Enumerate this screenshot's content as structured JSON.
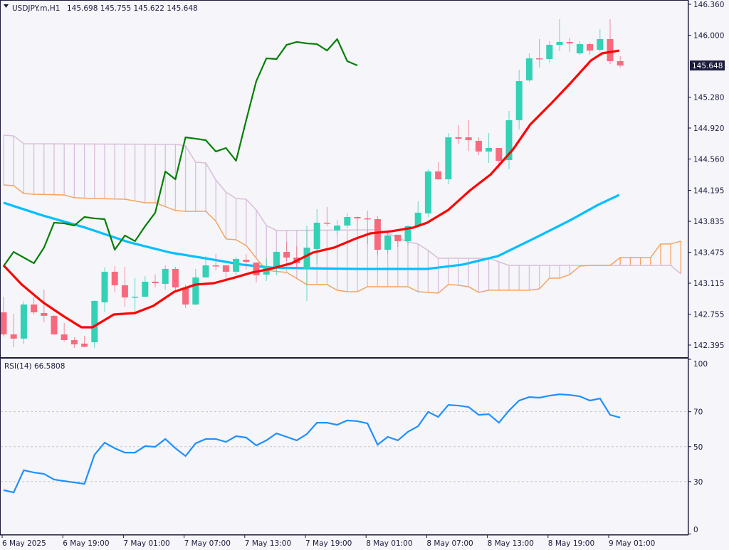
{
  "header": {
    "symbol": "USDJPY.m,H1",
    "ohlc": "145.698 145.755 145.622 145.648"
  },
  "price_axis": {
    "ticks": [
      "146.360",
      "146.000",
      "145.280",
      "144.920",
      "144.560",
      "144.195",
      "143.835",
      "143.475",
      "143.115",
      "142.755",
      "142.395"
    ],
    "current_price_label": "145.648"
  },
  "rsi_panel": {
    "label": "RSI(14) 66.5808",
    "ticks": [
      "100",
      "70",
      "50",
      "30",
      "0"
    ],
    "levels": [
      70,
      50,
      30
    ]
  },
  "time_axis": {
    "labels": [
      "6 May 2025",
      "6 May 19:00",
      "7 May 01:00",
      "7 May 07:00",
      "7 May 13:00",
      "7 May 19:00",
      "8 May 01:00",
      "8 May 07:00",
      "8 May 13:00",
      "8 May 19:00",
      "9 May 01:00"
    ],
    "bars_per_label": 6
  },
  "colors": {
    "background": "#f5f5fa",
    "bull": "#33d1b6",
    "bear": "#f76a7d",
    "ma_fast": "#ff0000",
    "ma_slow": "#00bfff",
    "chikou": "#008000",
    "span_a": "#d8bfd8",
    "span_b": "#f4a460",
    "rsi": "#1e90ff",
    "axis": "#1c1c3c",
    "price_tag": "#1c1c3c"
  },
  "chart_data": {
    "type": "candlestick",
    "title": "USDJPY.m,H1",
    "ylim": [
      142.254,
      146.41
    ],
    "ohlc": [
      [
        142.776,
        142.958,
        142.494,
        142.519
      ],
      [
        142.519,
        142.759,
        142.37,
        142.47
      ],
      [
        142.47,
        142.9,
        142.412,
        142.867
      ],
      [
        142.867,
        142.95,
        142.751,
        142.776
      ],
      [
        142.768,
        143.041,
        142.66,
        142.735
      ],
      [
        142.735,
        142.74,
        142.515,
        142.519
      ],
      [
        142.519,
        142.652,
        142.437,
        142.453
      ],
      [
        142.453,
        142.486,
        142.362,
        142.403
      ],
      [
        142.412,
        142.503,
        142.37,
        142.375
      ],
      [
        142.428,
        142.917,
        142.362,
        142.908
      ],
      [
        142.892,
        143.297,
        142.784,
        143.248
      ],
      [
        143.248,
        143.314,
        143.008,
        143.091
      ],
      [
        143.091,
        143.306,
        142.842,
        142.95
      ],
      [
        142.95,
        143.173,
        142.751,
        142.958
      ],
      [
        142.958,
        143.198,
        142.955,
        143.132
      ],
      [
        143.132,
        143.215,
        143.066,
        143.115
      ],
      [
        143.107,
        143.322,
        143.041,
        143.281
      ],
      [
        143.281,
        143.306,
        143.024,
        143.066
      ],
      [
        143.066,
        143.099,
        142.826,
        142.867
      ],
      [
        142.867,
        143.281,
        142.86,
        143.182
      ],
      [
        143.182,
        143.43,
        143.182,
        143.322
      ],
      [
        143.322,
        143.455,
        143.264,
        143.314
      ],
      [
        143.322,
        143.325,
        143.165,
        143.248
      ],
      [
        143.248,
        143.422,
        143.206,
        143.397
      ],
      [
        143.388,
        143.455,
        143.273,
        143.364
      ],
      [
        143.355,
        143.36,
        143.124,
        143.206
      ],
      [
        143.215,
        143.405,
        143.14,
        143.314
      ],
      [
        143.297,
        143.485,
        143.206,
        143.479
      ],
      [
        143.479,
        143.595,
        143.372,
        143.413
      ],
      [
        143.413,
        143.546,
        143.281,
        143.347
      ],
      [
        143.281,
        143.786,
        142.908,
        143.529
      ],
      [
        143.513,
        143.976,
        143.347,
        143.819
      ],
      [
        143.819,
        144.001,
        143.778,
        143.811
      ],
      [
        143.728,
        143.852,
        143.678,
        143.786
      ],
      [
        143.786,
        143.927,
        143.753,
        143.885
      ],
      [
        143.885,
        143.89,
        143.736,
        143.869
      ],
      [
        143.869,
        143.96,
        143.571,
        143.86
      ],
      [
        143.86,
        143.893,
        143.446,
        143.504
      ],
      [
        143.504,
        143.695,
        143.463,
        143.67
      ],
      [
        143.678,
        143.68,
        143.537,
        143.604
      ],
      [
        143.604,
        143.794,
        143.554,
        143.778
      ],
      [
        143.778,
        144.067,
        143.775,
        143.935
      ],
      [
        143.927,
        144.44,
        143.885,
        144.415
      ],
      [
        144.415,
        144.523,
        144.316,
        144.324
      ],
      [
        144.324,
        144.862,
        144.266,
        144.812
      ],
      [
        144.812,
        144.953,
        144.738,
        144.796
      ],
      [
        144.812,
        145.011,
        144.655,
        144.779
      ],
      [
        144.771,
        144.812,
        144.605,
        144.647
      ],
      [
        144.647,
        144.862,
        144.514,
        144.688
      ],
      [
        144.688,
        144.69,
        144.448,
        144.539
      ],
      [
        144.547,
        145.119,
        144.44,
        145.011
      ],
      [
        145.011,
        145.599,
        144.903,
        145.466
      ],
      [
        145.475,
        145.789,
        145.458,
        145.731
      ],
      [
        145.731,
        145.955,
        145.624,
        145.723
      ],
      [
        145.723,
        145.93,
        145.682,
        145.888
      ],
      [
        145.888,
        146.186,
        145.814,
        145.922
      ],
      [
        145.922,
        145.971,
        145.806,
        145.905
      ],
      [
        145.789,
        145.93,
        145.773,
        145.897
      ],
      [
        145.897,
        145.913,
        145.773,
        145.822
      ],
      [
        145.831,
        146.071,
        145.806,
        145.955
      ],
      [
        145.955,
        146.186,
        145.665,
        145.698
      ],
      [
        145.698,
        145.755,
        145.622,
        145.648
      ]
    ],
    "ma_fast": [
      [
        0,
        143.322
      ],
      [
        1.8,
        143.099
      ],
      [
        3.9,
        142.892
      ],
      [
        6,
        142.726
      ],
      [
        7.7,
        142.602
      ],
      [
        8.8,
        142.602
      ],
      [
        10.9,
        142.751
      ],
      [
        13,
        142.768
      ],
      [
        14.8,
        142.85
      ],
      [
        16.9,
        143.016
      ],
      [
        19,
        143.099
      ],
      [
        20.8,
        143.115
      ],
      [
        22.9,
        143.182
      ],
      [
        24.6,
        143.24
      ],
      [
        26.4,
        143.281
      ],
      [
        28.5,
        143.347
      ],
      [
        30.6,
        143.471
      ],
      [
        32.7,
        143.529
      ],
      [
        34.9,
        143.637
      ],
      [
        36.3,
        143.695
      ],
      [
        38.4,
        143.72
      ],
      [
        40.5,
        143.761
      ],
      [
        41.9,
        143.819
      ],
      [
        44,
        143.968
      ],
      [
        46.1,
        144.191
      ],
      [
        48.2,
        144.382
      ],
      [
        50.4,
        144.672
      ],
      [
        52.1,
        144.961
      ],
      [
        54.2,
        145.21
      ],
      [
        56,
        145.433
      ],
      [
        58.1,
        145.706
      ],
      [
        59.2,
        145.789
      ],
      [
        60.9,
        145.822
      ]
    ],
    "ma_slow": [
      [
        0,
        144.051
      ],
      [
        3.9,
        143.902
      ],
      [
        8.1,
        143.761
      ],
      [
        12.3,
        143.595
      ],
      [
        16.5,
        143.471
      ],
      [
        20.8,
        143.388
      ],
      [
        23.6,
        143.331
      ],
      [
        26.4,
        143.297
      ],
      [
        29.9,
        143.289
      ],
      [
        34.9,
        143.281
      ],
      [
        41.9,
        143.281
      ],
      [
        45.4,
        143.331
      ],
      [
        48.9,
        143.43
      ],
      [
        52.5,
        143.637
      ],
      [
        56,
        143.844
      ],
      [
        58.8,
        144.026
      ],
      [
        60.9,
        144.142
      ]
    ],
    "chikou_shift": 26,
    "span_a": [
      [
        0,
        144.837
      ],
      [
        1,
        144.829
      ],
      [
        2,
        144.738
      ],
      [
        17,
        144.73
      ],
      [
        18,
        144.713
      ],
      [
        19,
        144.523
      ],
      [
        20,
        144.514
      ],
      [
        21,
        144.316
      ],
      [
        22,
        144.175
      ],
      [
        23,
        144.1
      ],
      [
        24,
        144.092
      ],
      [
        25,
        143.968
      ],
      [
        26,
        143.786
      ],
      [
        27,
        143.728
      ],
      [
        37,
        143.736
      ],
      [
        38,
        143.695
      ],
      [
        40,
        143.595
      ],
      [
        41,
        143.571
      ],
      [
        42,
        143.496
      ],
      [
        43,
        143.405
      ],
      [
        48,
        143.405
      ],
      [
        50,
        143.322
      ],
      [
        66,
        143.322
      ],
      [
        67,
        143.223
      ]
    ],
    "span_b": [
      [
        0,
        144.258
      ],
      [
        1,
        144.25
      ],
      [
        2,
        144.158
      ],
      [
        3,
        144.15
      ],
      [
        6,
        144.142
      ],
      [
        7,
        144.109
      ],
      [
        9,
        144.1
      ],
      [
        12,
        144.092
      ],
      [
        14,
        144.051
      ],
      [
        15,
        144.051
      ],
      [
        17,
        143.96
      ],
      [
        18,
        143.951
      ],
      [
        20,
        143.951
      ],
      [
        21,
        143.836
      ],
      [
        22,
        143.629
      ],
      [
        23,
        143.62
      ],
      [
        24,
        143.554
      ],
      [
        25,
        143.405
      ],
      [
        26,
        143.264
      ],
      [
        28,
        143.24
      ],
      [
        30,
        143.099
      ],
      [
        32,
        143.099
      ],
      [
        33,
        143.033
      ],
      [
        34,
        143.016
      ],
      [
        35,
        143.016
      ],
      [
        36,
        143.074
      ],
      [
        40,
        143.074
      ],
      [
        41,
        143.016
      ],
      [
        43,
        143.0
      ],
      [
        44,
        143.099
      ],
      [
        45,
        143.091
      ],
      [
        46,
        143.074
      ],
      [
        47,
        143.008
      ],
      [
        48,
        143.033
      ],
      [
        52,
        143.033
      ],
      [
        53,
        143.049
      ],
      [
        54,
        143.173
      ],
      [
        55,
        143.173
      ],
      [
        56,
        143.215
      ],
      [
        57,
        143.314
      ],
      [
        58,
        143.322
      ],
      [
        60,
        143.322
      ],
      [
        61,
        143.413
      ],
      [
        64,
        143.413
      ],
      [
        65,
        143.571
      ],
      [
        66,
        143.571
      ],
      [
        67,
        143.604
      ]
    ],
    "cloud_end_index": 67,
    "rsi": {
      "period": 14,
      "ylim": [
        0,
        100
      ],
      "values": [
        25.1,
        23.8,
        36.5,
        35.2,
        34.4,
        31.2,
        30.3,
        29.5,
        28.7,
        45.4,
        52.3,
        49.1,
        46.6,
        46.6,
        50.3,
        49.9,
        54.4,
        49.1,
        44.6,
        51.9,
        54.4,
        54.4,
        52.7,
        56.0,
        55.2,
        50.7,
        53.6,
        57.6,
        55.6,
        53.6,
        57.2,
        63.7,
        63.7,
        62.5,
        65.0,
        64.6,
        63.3,
        51.1,
        55.6,
        53.6,
        58.5,
        61.7,
        69.9,
        67.0,
        73.9,
        73.5,
        72.7,
        68.2,
        68.6,
        63.7,
        70.7,
        76.4,
        78.4,
        78.0,
        79.2,
        80.0,
        79.6,
        78.8,
        76.4,
        77.6,
        68.2,
        66.6
      ]
    }
  }
}
